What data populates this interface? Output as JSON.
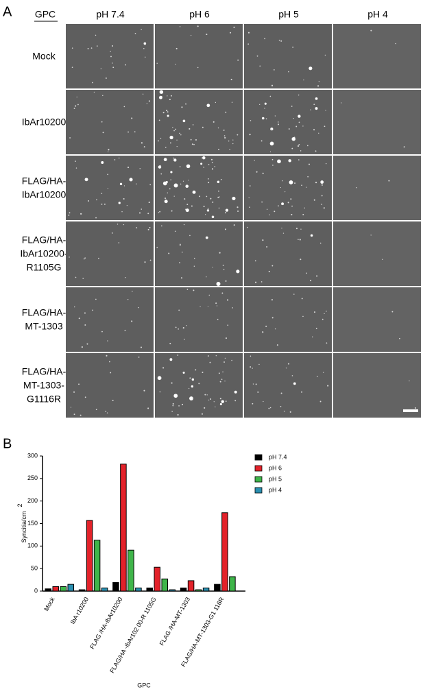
{
  "panel_a": {
    "label": "A",
    "corner_header": "GPC",
    "columns": [
      "pH 7.4",
      "pH 6",
      "pH 5",
      "pH 4"
    ],
    "rows": [
      [
        "Mock"
      ],
      [
        "IbAr10200"
      ],
      [
        "FLAG/HA-",
        "IbAr10200"
      ],
      [
        "FLAG/HA-",
        "IbAr10200-",
        "R1105G"
      ],
      [
        "FLAG/HA-",
        "MT-1303"
      ],
      [
        "FLAG/HA-",
        "MT-1303-",
        "G1116R"
      ]
    ]
  },
  "panel_b_label": "B",
  "chart_data": {
    "type": "bar",
    "ylabel": "Syncitia/cm",
    "ylabel_superscript": "2",
    "xlabel": "GPC",
    "categories": [
      "Mock",
      "IbA r10200",
      "FLAG /HA-IbAr10200",
      "FLAG/HA  -IbAr102 00-R 1105G",
      "FLAG /HA-MT-1303",
      "FLAG/HA-MT-1303-G1 116R"
    ],
    "series": [
      {
        "name": "pH 7.4",
        "color": "#000000",
        "values": [
          5,
          3,
          19,
          7,
          7,
          15
        ]
      },
      {
        "name": "pH 6",
        "color": "#e3222a",
        "values": [
          10,
          157,
          282,
          53,
          23,
          174
        ]
      },
      {
        "name": "pH 5",
        "color": "#3fb54a",
        "values": [
          10,
          113,
          91,
          27,
          3,
          32
        ]
      },
      {
        "name": "pH 4",
        "color": "#2a8fb0",
        "values": [
          15,
          7,
          7,
          3,
          7,
          0
        ]
      }
    ],
    "ylim": [
      0,
      300
    ],
    "yticks": [
      0,
      50,
      100,
      150,
      200,
      250,
      300
    ],
    "grid": false,
    "legend": "right"
  }
}
